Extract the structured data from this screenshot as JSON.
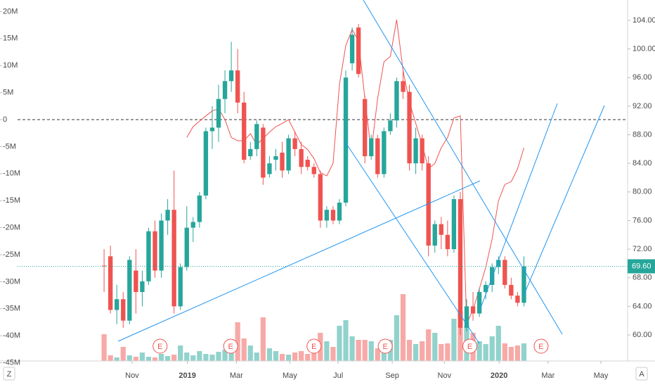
{
  "chart_data": {
    "type": "candlestick",
    "xlim": [
      -13.6,
      82.3
    ],
    "xticks": [
      {
        "value": 4.4,
        "label": "Nov"
      },
      {
        "value": 13.1,
        "label": "2019"
      },
      {
        "value": 20.8,
        "label": "Mar"
      },
      {
        "value": 29.2,
        "label": "May"
      },
      {
        "value": 36.8,
        "label": "Jul"
      },
      {
        "value": 45.3,
        "label": "Sep"
      },
      {
        "value": 53.5,
        "label": "Nov"
      },
      {
        "value": 62.1,
        "label": "2020"
      },
      {
        "value": 69.8,
        "label": "Mar"
      },
      {
        "value": 78.1,
        "label": "May"
      }
    ],
    "ylim": [
      -44660000,
      22140000
    ],
    "yticks": [
      {
        "value": 20000000,
        "label": "20M"
      },
      {
        "value": 15000000,
        "label": "15M"
      },
      {
        "value": 10000000,
        "label": "10M"
      },
      {
        "value": 5000000,
        "label": "5M"
      },
      0,
      {
        "value": -5000000,
        "label": "-5M"
      },
      {
        "value": -10000000,
        "label": "-10M"
      },
      {
        "value": -15000000,
        "label": "-15M"
      },
      {
        "value": -20000000,
        "label": "-20M"
      },
      {
        "value": -25000000,
        "label": "-25M"
      },
      {
        "value": -30000000,
        "label": "-30M"
      },
      {
        "value": -35000000,
        "label": "-35M"
      },
      {
        "value": -40000000,
        "label": "-40M"
      },
      {
        "value": -45000000,
        "label": "-45M"
      }
    ],
    "y2lim": [
      56.36,
      106.85
    ],
    "y2ticks": [
      {
        "value": 104,
        "label": "104.00"
      },
      {
        "value": 100,
        "label": "100.00"
      },
      {
        "value": 96,
        "label": "96.00"
      },
      {
        "value": 92,
        "label": "92.00"
      },
      {
        "value": 88,
        "label": "88.00"
      },
      {
        "value": 84,
        "label": "84.00"
      },
      {
        "value": 80,
        "label": "80.00"
      },
      {
        "value": 76,
        "label": "76.00"
      },
      {
        "value": 72,
        "label": "72.00"
      },
      {
        "value": 68,
        "label": "68.00"
      },
      {
        "value": 64,
        "label": "64.00"
      },
      {
        "value": 60,
        "label": "60.00"
      }
    ],
    "baseline": 0,
    "up_color": "#26a69a",
    "down_color": "#ef5350",
    "axis": "y2",
    "open": [
      69.7,
      71,
      63.5,
      65,
      62,
      69,
      66,
      67.5,
      74.5,
      69,
      76,
      77.5,
      64,
      69.5,
      75,
      75.8,
      79.5,
      88.5,
      89,
      93,
      95.5,
      97,
      92.5,
      85,
      86,
      89,
      82.5,
      84.5,
      85.5,
      83,
      87.5,
      86,
      84.5,
      83.5,
      82.5,
      76,
      77.5,
      76,
      78.5,
      98,
      103,
      93,
      85,
      87.5,
      82.5,
      88.5,
      90,
      95.5,
      94,
      84,
      87.5,
      84,
      72.5,
      75.5,
      74,
      72,
      79,
      61,
      64,
      63,
      66,
      67,
      69.5,
      70.5,
      67,
      65.5,
      64.5
    ],
    "high": [
      72,
      72.5,
      67,
      66,
      71,
      72,
      69,
      75,
      76,
      77,
      79,
      83,
      70,
      78,
      76.5,
      80,
      89,
      92,
      95,
      97,
      101,
      100,
      94,
      87,
      90,
      89.5,
      85,
      86,
      87,
      88,
      88.5,
      87,
      85,
      84,
      83,
      78,
      78,
      79,
      97,
      103,
      103.5,
      93.5,
      88,
      88,
      89,
      91,
      96,
      97,
      95,
      89,
      88,
      85,
      76,
      76.5,
      76,
      79.5,
      80,
      65,
      66,
      66.5,
      67.5,
      70,
      71,
      71,
      68,
      66,
      71
    ],
    "low": [
      66,
      63,
      61.5,
      61,
      61.5,
      63,
      64,
      67,
      68,
      68,
      74,
      63,
      63.5,
      69,
      73,
      75,
      79,
      86,
      87,
      91,
      94,
      91,
      84,
      84.5,
      85,
      81,
      82,
      83,
      82,
      82.5,
      85,
      82.5,
      83,
      82,
      75,
      75,
      75.5,
      75.5,
      78,
      97,
      96,
      84,
      84.5,
      82,
      82,
      88,
      89,
      93,
      83,
      82.5,
      83,
      71,
      71.5,
      72,
      71,
      71.5,
      60,
      60.5,
      62,
      62.5,
      65,
      66,
      68.5,
      66.5,
      65,
      64,
      64
    ],
    "close": [
      69.6,
      63.5,
      65,
      62,
      70.5,
      66,
      67.5,
      74.5,
      69,
      76,
      77.5,
      64,
      69.5,
      75,
      75.8,
      79.5,
      88.5,
      89,
      93,
      95.5,
      97,
      92.5,
      84.5,
      86,
      89.5,
      82,
      84,
      85,
      83,
      87.5,
      86,
      83.5,
      83.5,
      82.5,
      76,
      77.5,
      76,
      78.5,
      96,
      102,
      96.5,
      85,
      87.5,
      82.5,
      88.5,
      90,
      95.5,
      94,
      84,
      87.5,
      84,
      72.5,
      75.5,
      74,
      72,
      79,
      61,
      64,
      63,
      66,
      67,
      69.5,
      70.5,
      67,
      65.5,
      64.5,
      69.6
    ],
    "volume": [
      38,
      8,
      5,
      20,
      8,
      6,
      12,
      6,
      5,
      10,
      7,
      9,
      22,
      12,
      8,
      14,
      10,
      9,
      13,
      16,
      30,
      55,
      32,
      22,
      12,
      62,
      18,
      14,
      10,
      9,
      12,
      14,
      10,
      11,
      40,
      28,
      20,
      50,
      58,
      35,
      30,
      30,
      28,
      18,
      25,
      30,
      65,
      95,
      30,
      24,
      28,
      45,
      40,
      24,
      25,
      60,
      70,
      50,
      40,
      28,
      24,
      35,
      50,
      25,
      20,
      22,
      25
    ],
    "indicator": {
      "color": "#ef5350",
      "axis": "y",
      "values": [
        null,
        null,
        null,
        null,
        null,
        null,
        null,
        null,
        null,
        null,
        null,
        null,
        null,
        -3300000,
        -1300000,
        -300000,
        700000,
        1600000,
        2000000,
        0,
        -3300000,
        -3900000,
        -3900000,
        -2600000,
        -4600000,
        -3500000,
        -2300000,
        -1300000,
        -700000,
        0,
        -2300000,
        -4600000,
        -5500000,
        -7200000,
        -9800000,
        -10400000,
        -8100000,
        6500000,
        13700000,
        16700000,
        14600000,
        3900000,
        -5900000,
        3900000,
        10700000,
        11700000,
        18500000,
        9100000,
        3300000,
        -700000,
        -4600000,
        -9100000,
        -8100000,
        -5200000,
        -3300000,
        300000,
        700000,
        -37800000,
        -35200000,
        -31300000,
        -27300000,
        -22100000,
        -15000000,
        -12000000,
        -11500000,
        -9100000,
        -5200000
      ]
    },
    "last_price": {
      "value": 69.6,
      "label": "69.60",
      "color": "#26a69a"
    },
    "earnings": [
      {
        "x": 8.8,
        "label": "E"
      },
      {
        "x": 19.9,
        "label": "E"
      },
      {
        "x": 33,
        "label": "E"
      },
      {
        "x": 44.2,
        "label": "E"
      },
      {
        "x": 57.5,
        "label": "E"
      },
      {
        "x": 68.7,
        "label": "E"
      }
    ]
  }
}
